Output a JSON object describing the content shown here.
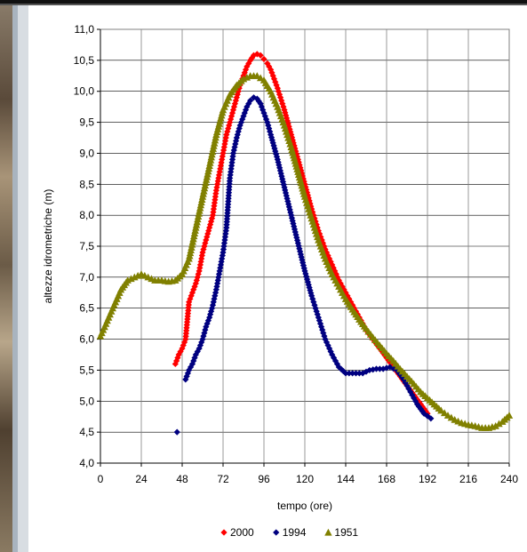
{
  "chart_data": {
    "type": "scatter",
    "title": "",
    "xlabel": "tempo (ore)",
    "ylabel": "altezze idrometriche (m)",
    "xlim": [
      0,
      240
    ],
    "ylim": [
      4.0,
      11.0
    ],
    "x_ticks": [
      "0",
      "24",
      "48",
      "72",
      "96",
      "120",
      "144",
      "168",
      "192",
      "216",
      "240"
    ],
    "y_ticks": [
      "4,0",
      "4,5",
      "5,0",
      "5,5",
      "6,0",
      "6,5",
      "7,0",
      "7,5",
      "8,0",
      "8,5",
      "9,0",
      "9,5",
      "10,0",
      "10,5",
      "11,0"
    ],
    "grid": true,
    "legend_position": "bottom",
    "series": [
      {
        "name": "2000",
        "color": "#ff0000",
        "marker": "diamond",
        "x": [
          44,
          46,
          48,
          50,
          52,
          54,
          56,
          58,
          60,
          62,
          64,
          66,
          68,
          70,
          72,
          74,
          76,
          78,
          80,
          82,
          84,
          86,
          88,
          90,
          92,
          94,
          96,
          98,
          100,
          104,
          108,
          112,
          116,
          120,
          124,
          128,
          132,
          136,
          140,
          144,
          148,
          152,
          156,
          160,
          164,
          168,
          172,
          176,
          180,
          184,
          188,
          192
        ],
        "y": [
          5.6,
          5.75,
          5.85,
          6.0,
          6.6,
          6.75,
          6.9,
          7.1,
          7.4,
          7.6,
          7.8,
          8.0,
          8.4,
          8.7,
          9.0,
          9.3,
          9.5,
          9.7,
          9.9,
          10.1,
          10.25,
          10.4,
          10.5,
          10.58,
          10.6,
          10.58,
          10.52,
          10.45,
          10.35,
          10.05,
          9.7,
          9.3,
          8.9,
          8.5,
          8.1,
          7.75,
          7.45,
          7.2,
          6.95,
          6.75,
          6.55,
          6.35,
          6.15,
          6.0,
          5.85,
          5.7,
          5.55,
          5.4,
          5.25,
          5.1,
          4.95,
          4.8
        ]
      },
      {
        "name": "1994",
        "color": "#000080",
        "marker": "diamond",
        "x": [
          45,
          50,
          52,
          54,
          56,
          58,
          60,
          62,
          64,
          66,
          68,
          70,
          72,
          74,
          76,
          78,
          80,
          82,
          84,
          86,
          88,
          90,
          92,
          94,
          96,
          98,
          100,
          104,
          108,
          112,
          116,
          120,
          124,
          128,
          132,
          136,
          140,
          144,
          146,
          150,
          154,
          158,
          162,
          166,
          170,
          174,
          178,
          182,
          186,
          190,
          194
        ],
        "y": [
          4.5,
          5.35,
          5.5,
          5.6,
          5.75,
          5.85,
          6.0,
          6.2,
          6.35,
          6.55,
          6.8,
          7.1,
          7.4,
          7.8,
          8.6,
          9.0,
          9.25,
          9.45,
          9.6,
          9.75,
          9.85,
          9.9,
          9.88,
          9.8,
          9.65,
          9.5,
          9.3,
          8.9,
          8.45,
          8.0,
          7.55,
          7.1,
          6.7,
          6.35,
          6.0,
          5.75,
          5.55,
          5.45,
          5.45,
          5.45,
          5.45,
          5.5,
          5.52,
          5.52,
          5.55,
          5.5,
          5.35,
          5.15,
          4.95,
          4.8,
          4.72
        ]
      },
      {
        "name": "1951",
        "color": "#808000",
        "marker": "triangle",
        "x": [
          0,
          4,
          8,
          12,
          16,
          20,
          24,
          28,
          32,
          36,
          40,
          44,
          48,
          52,
          56,
          60,
          64,
          68,
          72,
          76,
          80,
          84,
          88,
          92,
          96,
          100,
          104,
          108,
          112,
          116,
          120,
          124,
          128,
          132,
          136,
          140,
          144,
          148,
          152,
          156,
          160,
          164,
          168,
          172,
          176,
          180,
          184,
          188,
          192,
          196,
          200,
          204,
          208,
          212,
          216,
          220,
          224,
          228,
          232,
          236,
          240
        ],
        "y": [
          6.05,
          6.3,
          6.55,
          6.8,
          6.95,
          7.0,
          7.05,
          7.0,
          6.95,
          6.95,
          6.93,
          6.95,
          7.05,
          7.3,
          7.8,
          8.3,
          8.8,
          9.3,
          9.7,
          9.95,
          10.1,
          10.2,
          10.25,
          10.25,
          10.18,
          10.0,
          9.75,
          9.45,
          9.1,
          8.7,
          8.3,
          7.95,
          7.6,
          7.3,
          7.05,
          6.85,
          6.65,
          6.48,
          6.32,
          6.17,
          6.03,
          5.9,
          5.77,
          5.65,
          5.52,
          5.4,
          5.28,
          5.15,
          5.05,
          4.95,
          4.85,
          4.77,
          4.7,
          4.65,
          4.62,
          4.6,
          4.57,
          4.57,
          4.6,
          4.67,
          4.77
        ]
      }
    ]
  }
}
